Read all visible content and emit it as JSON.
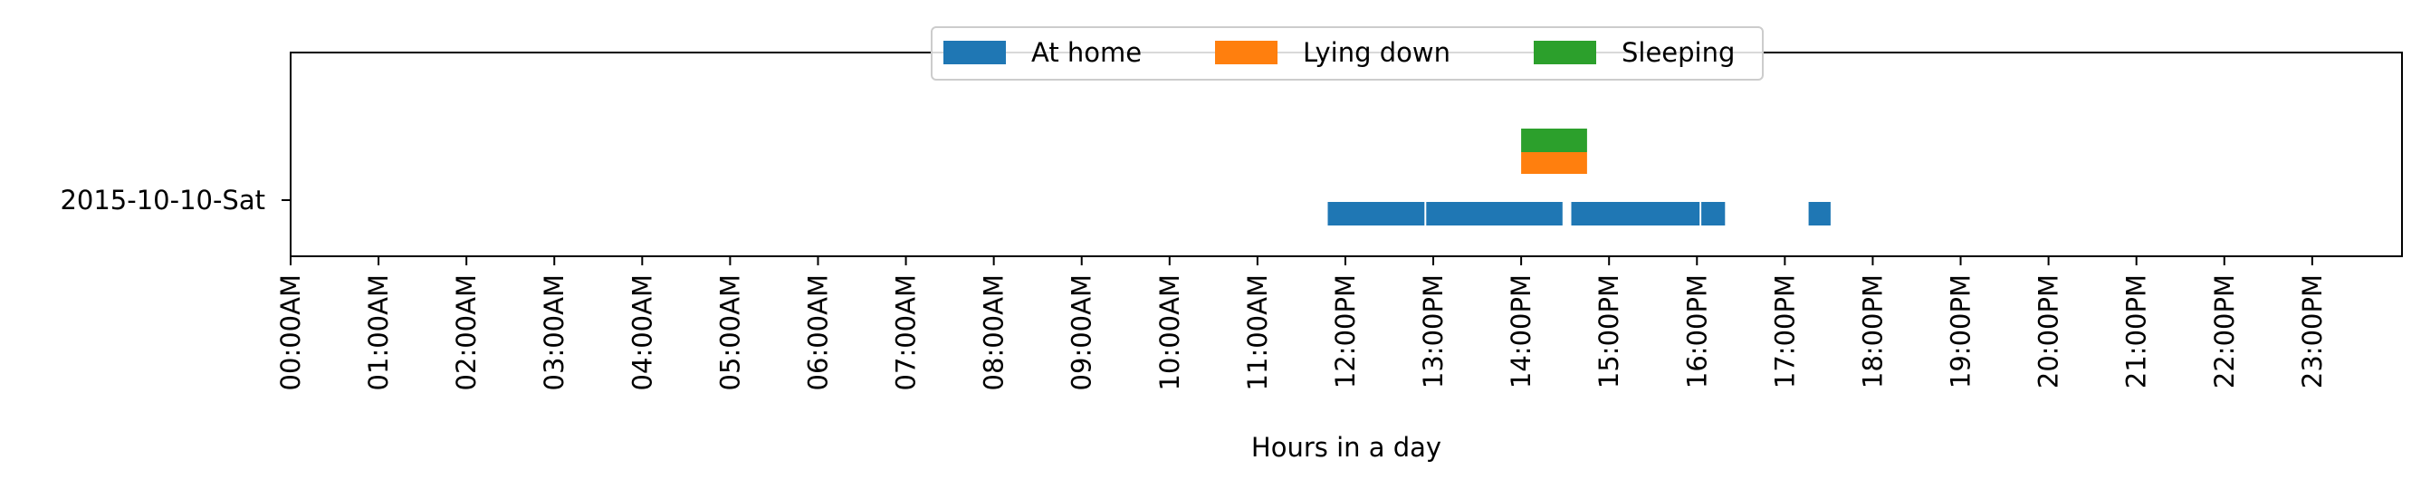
{
  "chart_data": {
    "type": "timeline",
    "xlabel": "Hours in a day",
    "xlim": [
      0,
      24
    ],
    "x_tick_labels": [
      "00:00AM",
      "01:00AM",
      "02:00AM",
      "03:00AM",
      "04:00AM",
      "05:00AM",
      "06:00AM",
      "07:00AM",
      "08:00AM",
      "09:00AM",
      "10:00AM",
      "11:00AM",
      "12:00PM",
      "13:00PM",
      "14:00PM",
      "15:00PM",
      "16:00PM",
      "17:00PM",
      "18:00PM",
      "19:00PM",
      "20:00PM",
      "21:00PM",
      "22:00PM",
      "23:00PM"
    ],
    "y_categories": [
      "2015-10-10-Sat"
    ],
    "legend": {
      "placement": "top-center",
      "columns": 3
    },
    "series": [
      {
        "name": "At home",
        "color": "#1f77b4",
        "lane": "lower",
        "intervals": [
          [
            11.8,
            12.9
          ],
          [
            12.92,
            14.47
          ],
          [
            14.57,
            16.03
          ],
          [
            16.05,
            16.32
          ],
          [
            17.27,
            17.52
          ]
        ]
      },
      {
        "name": "Lying down",
        "color": "#ff7f0e",
        "lane": "middle",
        "intervals": [
          [
            14.0,
            14.75
          ]
        ]
      },
      {
        "name": "Sleeping",
        "color": "#2ca02c",
        "lane": "upper",
        "intervals": [
          [
            14.0,
            14.75
          ]
        ]
      }
    ]
  }
}
